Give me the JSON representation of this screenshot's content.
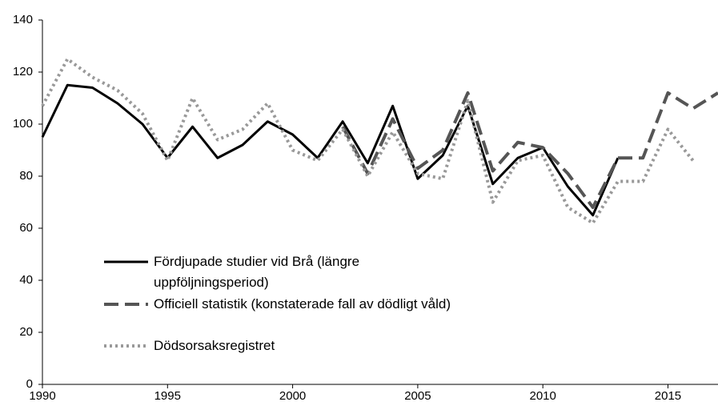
{
  "chart_data": {
    "type": "line",
    "x": [
      1990,
      1991,
      1992,
      1993,
      1994,
      1995,
      1996,
      1997,
      1998,
      1999,
      2000,
      2001,
      2002,
      2003,
      2004,
      2005,
      2006,
      2007,
      2008,
      2009,
      2010,
      2011,
      2012,
      2013,
      2014,
      2015,
      2016,
      2017
    ],
    "series": [
      {
        "name": "Fördjupade studier vid Brå (längre uppföljningsperiod)",
        "color": "#000000",
        "style": "solid",
        "values": [
          95,
          115,
          114,
          108,
          100,
          87,
          99,
          87,
          92,
          101,
          96,
          87,
          101,
          85,
          107,
          79,
          88,
          107,
          77,
          87,
          91,
          76,
          65,
          87,
          null,
          null,
          null,
          null
        ]
      },
      {
        "name": "Officiell statistik (konstaterade fall av dödligt våld)",
        "color": "#555555",
        "style": "dashed",
        "values": [
          null,
          null,
          null,
          null,
          null,
          null,
          null,
          null,
          null,
          null,
          null,
          null,
          99,
          81,
          102,
          83,
          90,
          112,
          82,
          93,
          91,
          81,
          68,
          87,
          87,
          112,
          106,
          112
        ]
      },
      {
        "name": "Dödsorsaksregistret",
        "color": "#999999",
        "style": "dotted",
        "values": [
          107,
          125,
          118,
          113,
          104,
          86,
          110,
          94,
          98,
          108,
          90,
          86,
          98,
          80,
          97,
          81,
          79,
          109,
          70,
          86,
          88,
          68,
          62,
          78,
          78,
          98,
          86,
          null
        ]
      }
    ],
    "xlim": [
      1990,
      2017
    ],
    "xticks": [
      1990,
      1995,
      2000,
      2005,
      2010,
      2015
    ],
    "ylim": [
      0,
      140
    ],
    "yticks": [
      0,
      20,
      40,
      60,
      80,
      100,
      120,
      140
    ]
  }
}
